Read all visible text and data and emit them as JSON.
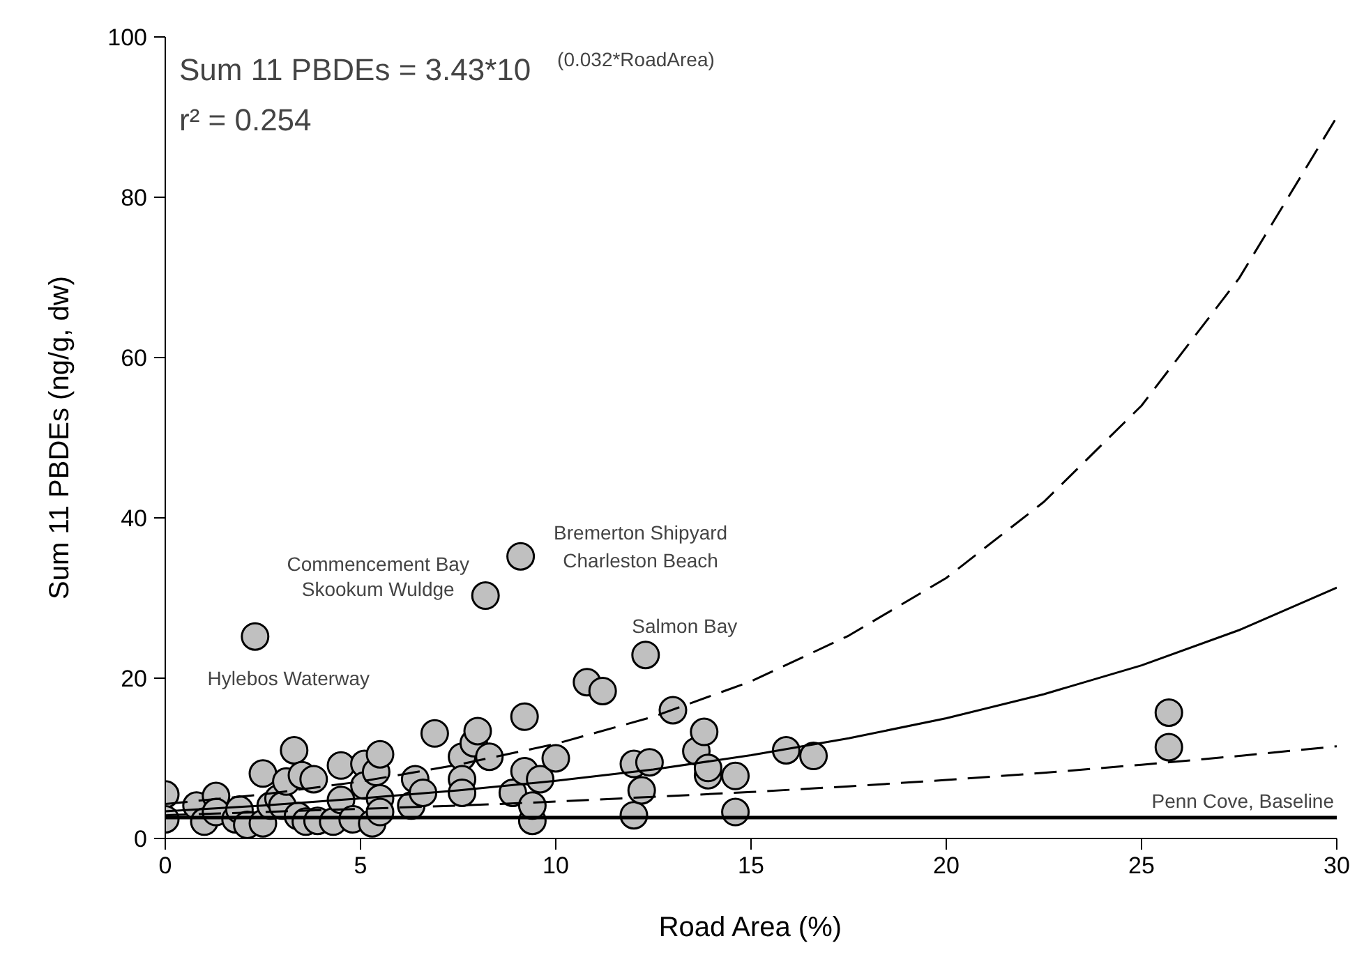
{
  "chart_data": {
    "type": "scatter",
    "xlabel": "Road Area (%)",
    "ylabel": "Sum 11 PBDEs (ng/g, dw)",
    "xlim": [
      0,
      30
    ],
    "ylim": [
      0,
      100
    ],
    "xticks": [
      0,
      5,
      10,
      15,
      20,
      25,
      30
    ],
    "yticks": [
      0,
      20,
      40,
      60,
      80,
      100
    ],
    "grid": false,
    "series": [
      {
        "color": "#c0c0c0",
        "x": [
          0,
          0,
          0.8,
          1.0,
          1.3,
          1.3,
          1.8,
          1.9,
          2.1,
          2.3,
          2.5,
          2.5,
          2.7,
          2.9,
          3.0,
          3.1,
          3.3,
          3.4,
          3.5,
          3.6,
          3.8,
          3.9,
          4.3,
          4.5,
          4.5,
          4.8,
          5.1,
          5.1,
          5.3,
          5.4,
          5.5,
          5.5,
          5.5,
          6.3,
          6.4,
          6.6,
          6.9,
          7.6,
          7.6,
          7.6,
          7.9,
          8.0,
          8.2,
          8.3,
          8.9,
          9.1,
          9.2,
          9.2,
          9.4,
          9.4,
          9.6,
          10.0,
          10.8,
          11.2,
          12.0,
          12.0,
          12.2,
          12.3,
          12.4,
          13.0,
          13.6,
          13.8,
          13.9,
          13.9,
          14.6,
          14.6,
          15.9,
          16.6,
          25.7,
          25.7
        ],
        "values": [
          5.5,
          2.4,
          4.1,
          2.1,
          5.3,
          3.3,
          2.4,
          3.6,
          1.7,
          25.2,
          8.1,
          1.9,
          4.1,
          5.0,
          4.1,
          7.1,
          11.0,
          2.8,
          7.9,
          2.1,
          7.4,
          2.2,
          2.1,
          4.8,
          9.1,
          2.4,
          9.3,
          6.6,
          1.9,
          8.3,
          10.5,
          5.0,
          3.3,
          4.1,
          7.4,
          5.7,
          13.1,
          10.2,
          7.4,
          5.7,
          11.9,
          13.4,
          30.3,
          10.2,
          5.7,
          35.2,
          15.2,
          8.4,
          2.2,
          4.1,
          7.4,
          10.0,
          19.5,
          18.4,
          9.3,
          2.9,
          6.0,
          22.9,
          9.5,
          16.0,
          10.9,
          13.3,
          7.9,
          8.8,
          7.8,
          3.3,
          11.0,
          10.3,
          15.7,
          11.4
        ]
      },
      {
        "type": "line",
        "color": "#000000",
        "line_style": "solid",
        "x": [
          0,
          2.5,
          5,
          7.5,
          10,
          12.5,
          15,
          17.5,
          20,
          22.5,
          25,
          27.5,
          30
        ],
        "values": [
          3.4,
          4.1,
          5.0,
          6.0,
          7.2,
          8.6,
          10.4,
          12.5,
          15.0,
          18.0,
          21.6,
          26.0,
          31.3
        ]
      },
      {
        "type": "line",
        "color": "#000000",
        "line_style": "dashed",
        "x": [
          0,
          2.5,
          5,
          7.5,
          10,
          12.5,
          15,
          17.5,
          20,
          22.5,
          25,
          27.5,
          30
        ],
        "values": [
          4.3,
          5.5,
          7.1,
          9.2,
          11.8,
          15.2,
          19.6,
          25.3,
          32.5,
          42.0,
          54.0,
          69.9,
          90.0
        ]
      },
      {
        "type": "line",
        "color": "#000000",
        "line_style": "dashed",
        "x": [
          0,
          2.5,
          5,
          7.5,
          10,
          12.5,
          15,
          17.5,
          20,
          22.5,
          25,
          27.5,
          30
        ],
        "values": [
          2.9,
          3.3,
          3.7,
          4.1,
          4.6,
          5.2,
          5.8,
          6.5,
          7.3,
          8.2,
          9.2,
          10.3,
          11.5
        ]
      }
    ],
    "ref_lines": [
      {
        "axis": "y",
        "value": 2.6,
        "label": "Penn Cove, Baseline",
        "color": "#000000",
        "line_style": "solid"
      }
    ],
    "annotations": [
      "Sum 11 PBDEs = 3.43*10$^{(0.032*RoadArea)}$",
      "r² = 0.254",
      {
        "text": "Hylebos Waterway",
        "x": 2.3,
        "y": 25.2
      },
      {
        "text": "Commencement Bay",
        "x": 8.2,
        "y": 30.3
      },
      {
        "text": "Skookum Wuldge",
        "x": 8.2,
        "y": 30.3
      },
      {
        "text": "Bremerton Shipyard",
        "x": 9.1,
        "y": 35.2
      },
      {
        "text": "Charleston Beach",
        "x": 9.1,
        "y": 35.2
      },
      {
        "text": "Salmon Bay",
        "x": 12.3,
        "y": 22.9
      }
    ]
  }
}
